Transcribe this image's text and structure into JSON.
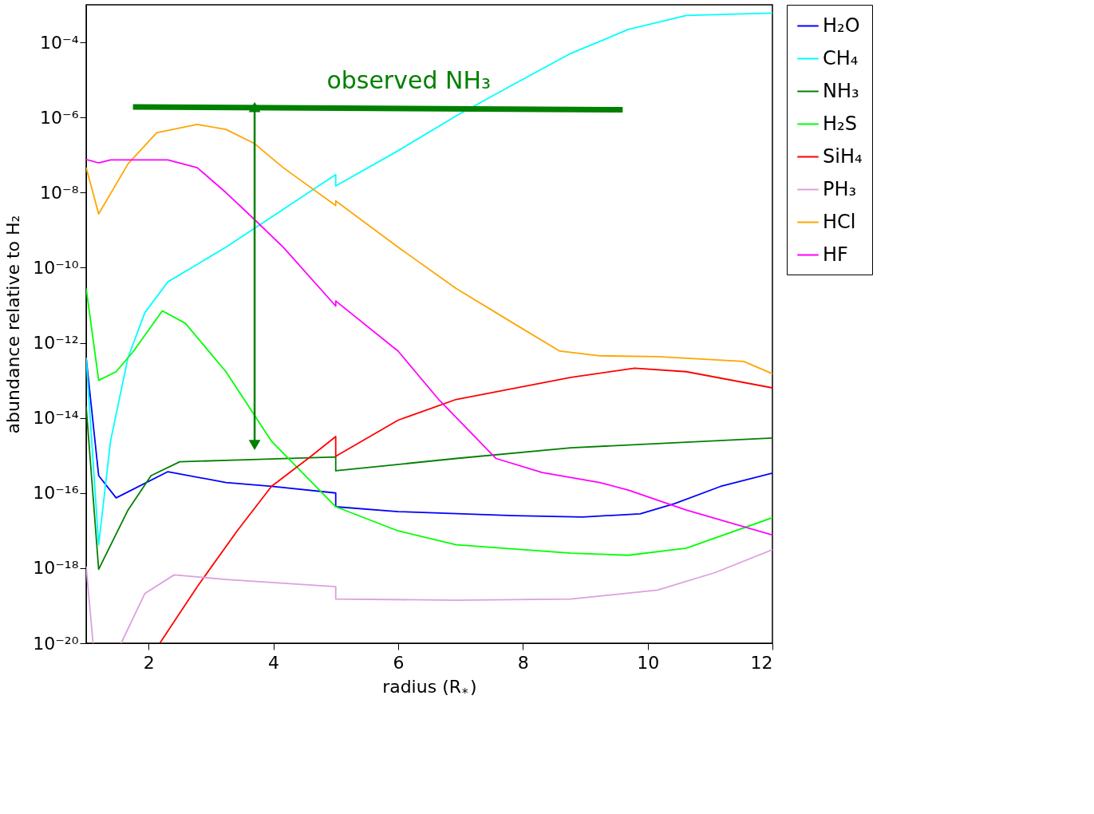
{
  "chart_data": {
    "type": "line",
    "xlabel": "radius (R$_{*}$)",
    "ylabel": "abundance relative to H₂",
    "log": "y",
    "grid": false,
    "legend": "right",
    "xlim": [
      1,
      12
    ],
    "xticks": [
      2,
      4,
      6,
      8,
      10,
      12
    ],
    "ylim": [
      1e-20,
      0.001
    ],
    "yticks": [
      {
        "value": 1e-20,
        "label": "10⁻²⁰"
      },
      {
        "value": 1e-18,
        "label": "10⁻¹⁸"
      },
      {
        "value": 1e-16,
        "label": "10⁻¹⁶"
      },
      {
        "value": 1e-14,
        "label": "10⁻¹⁴"
      },
      {
        "value": 1e-12,
        "label": "10⁻¹²"
      },
      {
        "value": 1e-10,
        "label": "10⁻¹⁰"
      },
      {
        "value": 1e-08,
        "label": "10⁻⁸"
      },
      {
        "value": 1e-06,
        "label": "10⁻⁶"
      },
      {
        "value": 0.0001,
        "label": "10⁻⁴"
      }
    ],
    "annotations": [
      "observed NH₃"
    ],
    "series": [
      {
        "name": "H₂O",
        "color": "#0000ff",
        "x": [
          1.0,
          1.2,
          1.48,
          2.31,
          3.24,
          3.97,
          5.0,
          5.0,
          6.0,
          7.85,
          8.96,
          9.88,
          10.43,
          11.17,
          12
        ],
        "values": [
          4e-13,
          2.9e-16,
          7.4e-17,
          3.7e-16,
          1.9e-16,
          1.5e-16,
          1e-16,
          4.3e-17,
          3.2e-17,
          2.5e-17,
          2.3e-17,
          2.8e-17,
          5.2e-17,
          1.5e-16,
          3.4e-16
        ]
      },
      {
        "name": "CH₄",
        "color": "#00ffff",
        "x": [
          1.0,
          1.2,
          1.39,
          1.67,
          1.94,
          2.31,
          3.24,
          4.16,
          5.0,
          5.0,
          6.0,
          6.93,
          7.85,
          8.77,
          9.69,
          10.62,
          12
        ],
        "values": [
          4e-13,
          4.2e-18,
          2.4e-15,
          4e-13,
          6.3e-12,
          4.2e-11,
          3.5e-10,
          3.6e-09,
          3e-08,
          1.5e-08,
          1.3e-07,
          1.1e-06,
          7.6e-06,
          5.1e-05,
          0.00022,
          0.00052,
          0.0006
        ]
      },
      {
        "name": "NH₃",
        "color": "#008000",
        "x": [
          1.0,
          1.2,
          1.67,
          2.04,
          2.5,
          3.24,
          5.0,
          5.0,
          6.93,
          8.77,
          12
        ],
        "values": [
          2e-14,
          9.3e-19,
          3.5e-17,
          2.9e-16,
          6.8e-16,
          7.4e-16,
          9.1e-16,
          3.9e-16,
          8.3e-16,
          1.6e-15,
          2.9e-15
        ]
      },
      {
        "name": "H₂S",
        "color": "#00ff00",
        "x": [
          1.0,
          1.2,
          1.48,
          1.76,
          2.22,
          2.59,
          3.24,
          3.97,
          4.62,
          5.0,
          6.0,
          6.93,
          8.77,
          9.69,
          10.62,
          12
        ],
        "values": [
          2.8e-11,
          1e-13,
          1.7e-13,
          6e-13,
          7.1e-12,
          3.3e-12,
          1.7e-13,
          2.4e-15,
          1.9e-16,
          4.3e-17,
          9.8e-18,
          4.2e-18,
          2.5e-18,
          2.2e-18,
          3.4e-18,
          2.2e-17
        ]
      },
      {
        "name": "SiH₄",
        "color": "#ff0000",
        "x": [
          2.18,
          2.78,
          3.42,
          3.97,
          4.62,
          5.0,
          5.0,
          6.0,
          6.93,
          8.77,
          9.79,
          10.62,
          12
        ],
        "values": [
          1e-20,
          3.2e-19,
          9.8e-18,
          1.5e-16,
          1e-15,
          3.2e-15,
          9.5e-16,
          8.7e-15,
          3.1e-14,
          1.2e-13,
          2.1e-13,
          1.7e-13,
          6.3e-14
        ]
      },
      {
        "name": "PH₃",
        "color": "#dda0dd",
        "x": [
          1.0,
          1.11,
          1.3,
          1.56,
          1.94,
          2.41,
          3.24,
          5.0,
          5.0,
          6.93,
          8.77,
          10.16,
          11.08,
          12
        ],
        "values": [
          1.1e-18,
          1e-20,
          null,
          1e-20,
          2.1e-19,
          6.6e-19,
          5e-19,
          3.2e-19,
          1.5e-19,
          1.4e-19,
          1.5e-19,
          2.6e-19,
          7.6e-19,
          3.1e-18
        ]
      },
      {
        "name": "HCl",
        "color": "#ffa500",
        "x": [
          1.0,
          1.2,
          1.67,
          2.13,
          2.78,
          3.24,
          3.7,
          4.16,
          5.0,
          5.0,
          6.0,
          6.93,
          7.85,
          8.59,
          9.23,
          10.16,
          11.54,
          12
        ],
        "values": [
          4.6e-08,
          2.7e-09,
          5.8e-08,
          3.9e-07,
          6.5e-07,
          4.8e-07,
          2e-07,
          4.6e-08,
          4.5e-09,
          6e-09,
          3.5e-10,
          2.8e-11,
          3.3e-12,
          6e-13,
          4.5e-13,
          4.3e-13,
          3.2e-13,
          1.5e-13
        ]
      },
      {
        "name": "HF",
        "color": "#ff00ff",
        "x": [
          1.0,
          1.2,
          1.39,
          2.31,
          2.78,
          3.24,
          3.7,
          4.16,
          5.0,
          5.0,
          6.0,
          6.65,
          7.57,
          8.31,
          9.23,
          9.69,
          10.62,
          12
        ],
        "values": [
          7.6e-08,
          6.2e-08,
          7.4e-08,
          7.4e-08,
          4.6e-08,
          1e-08,
          1.9e-09,
          3.5e-10,
          9.5e-12,
          1.3e-11,
          6e-13,
          3.1e-14,
          8.3e-16,
          3.5e-16,
          1.9e-16,
          1.2e-16,
          3.5e-17,
          7.6e-18
        ]
      },
      {
        "color": "#008000",
        "x": [
          1.75,
          9.6
        ],
        "values": [
          1.9e-06,
          1.6e-06
        ]
      },
      {
        "color": "#008000",
        "x": [
          3.7,
          3.7
        ],
        "values": [
          1.9e-06,
          1.9e-15
        ],
        "marker": "triangle"
      }
    ]
  }
}
